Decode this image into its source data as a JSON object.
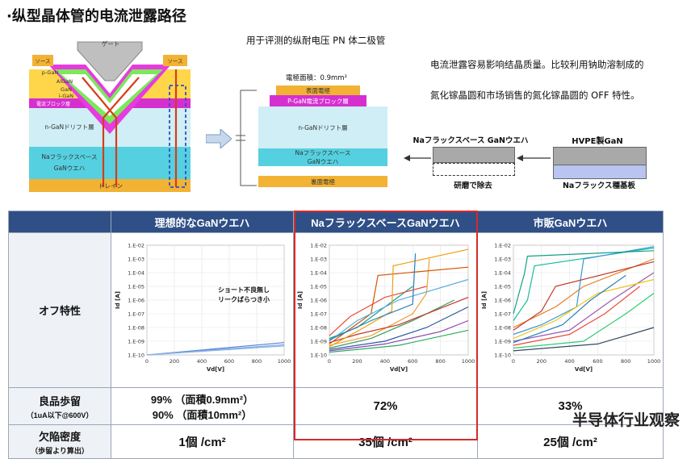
{
  "page": {
    "title": "·纵型晶体管的电流泄露路径",
    "caption_diode": "用于评测的纵耐电压 PN 体二极管",
    "caption_right_line1": "电流泄露容易影响结晶质量。比较利用钠助溶制成的",
    "caption_right_line2": "氮化镓晶圆和市场销售的氮化镓晶圆的 OFF 特性。"
  },
  "transistor": {
    "gate": "ゲート",
    "source_left": "ソース",
    "source_right": "ソース",
    "p_gan_left": "p-GaN",
    "algan": "AlGaN",
    "gan": "GaN",
    "i_gan": "i-GaN",
    "current_block": "電流ブロック層",
    "n_drift": "n-GaNドリフト層",
    "na_base_line1": "Naフラックスベース",
    "na_base_line2": "GaNウエハ",
    "drain": "ドレイン"
  },
  "diode": {
    "area": "電極面積：0.9mm²",
    "top_electrode": "表面電極",
    "p_block": "P-GaN電流ブロック層",
    "n_drift": "n-GaNドリフト層",
    "na_base_line1": "Naフラックスベース",
    "na_base_line2": "GaNウエハ",
    "back_electrode": "裏面電極"
  },
  "process": {
    "hvpe": "HVPE製GaN",
    "na_wafer": "Naフラックスベース GaNウエハ",
    "grind": "研磨で除去",
    "na_seed": "Naフラックス種基板"
  },
  "table": {
    "headers": [
      "",
      "理想的なGaNウエハ",
      "NaフラックスベースGaNウエハ",
      "市販GaNウエハ"
    ],
    "row_off": "オフ特性",
    "row_yield": "良品歩留",
    "row_yield_sub": "（1uA以下@600V）",
    "row_defect": "欠陥密度",
    "row_defect_sub": "（歩留より算出）",
    "yield_ideal_line1": "99% （面積0.9mm²）",
    "yield_ideal_line2": "90% （面積10mm²）",
    "yield_na": "72%",
    "yield_com": "33%",
    "defect_ideal": "1個 /cm²",
    "defect_na": "35個 /cm²",
    "defect_com": "25個 /cm²"
  },
  "watermark": "半导体行业观察",
  "chart_data": [
    {
      "type": "line",
      "title": "",
      "xlabel": "Vd[V]",
      "ylabel": "Id [A]",
      "xlim": [
        0,
        1000
      ],
      "log_y": true,
      "y_ticks": [
        "1.E-02",
        "1.E-03",
        "1.E-04",
        "1.E-05",
        "1.E-06",
        "1.E-07",
        "1.E-08",
        "1.E-09",
        "1.E-10"
      ],
      "x_ticks": [
        "0",
        "200",
        "400",
        "600",
        "800",
        "1000"
      ],
      "annotation_line1": "ショート不良無し",
      "annotation_line2": "リークばらつき小",
      "series": [
        {
          "color": "#5b7fd6",
          "values": [
            [
              0,
              -10
            ],
            [
              1000,
              -9.1
            ]
          ]
        },
        {
          "color": "#6fa8dc",
          "values": [
            [
              0,
              -10
            ],
            [
              1000,
              -9.25
            ]
          ]
        },
        {
          "color": "#8fb3e8",
          "values": [
            [
              0,
              -10
            ],
            [
              1000,
              -9.35
            ]
          ]
        }
      ]
    },
    {
      "type": "line",
      "title": "",
      "xlabel": "Vd[V]",
      "ylabel": "Id [A]",
      "xlim": [
        0,
        1000
      ],
      "log_y": true,
      "y_ticks": [
        "1.E-02",
        "1.E-03",
        "1.E-04",
        "1.E-05",
        "1.E-06",
        "1.E-07",
        "1.E-08",
        "1.E-09",
        "1.E-10"
      ],
      "x_ticks": [
        "0",
        "200",
        "400",
        "600",
        "800",
        "1000"
      ],
      "series": [
        {
          "color": "#f0a030",
          "values": [
            [
              0,
              -9.3
            ],
            [
              300,
              -8.6
            ],
            [
              600,
              -7
            ],
            [
              700,
              -5.5
            ],
            [
              720,
              -3
            ]
          ]
        },
        {
          "color": "#2c5aa0",
          "values": [
            [
              0,
              -9.6
            ],
            [
              400,
              -9
            ],
            [
              700,
              -8
            ],
            [
              1000,
              -6.5
            ]
          ]
        },
        {
          "color": "#3a9b5c",
          "values": [
            [
              0,
              -9.5
            ],
            [
              300,
              -8.8
            ],
            [
              600,
              -7.5
            ],
            [
              900,
              -6
            ]
          ]
        },
        {
          "color": "#c0392b",
          "values": [
            [
              0,
              -9.1
            ],
            [
              200,
              -8.5
            ],
            [
              500,
              -7.8
            ],
            [
              800,
              -6.6
            ],
            [
              1000,
              -5.8
            ]
          ]
        },
        {
          "color": "#8e44ad",
          "values": [
            [
              0,
              -9.7
            ],
            [
              400,
              -9.2
            ],
            [
              800,
              -8.3
            ],
            [
              1000,
              -7.5
            ]
          ]
        },
        {
          "color": "#16a085",
          "values": [
            [
              0,
              -8.8
            ],
            [
              200,
              -8
            ],
            [
              400,
              -6.5
            ],
            [
              600,
              -5
            ]
          ]
        },
        {
          "color": "#d35400",
          "values": [
            [
              0,
              -9.2
            ],
            [
              300,
              -7
            ],
            [
              350,
              -4.2
            ],
            [
              1000,
              -3.6
            ]
          ]
        },
        {
          "color": "#5dade2",
          "values": [
            [
              0,
              -9
            ],
            [
              200,
              -7.5
            ],
            [
              500,
              -6
            ],
            [
              1000,
              -4.5
            ]
          ]
        },
        {
          "color": "#e74c3c",
          "values": [
            [
              0,
              -8.6
            ],
            [
              150,
              -7.2
            ],
            [
              400,
              -5.8
            ],
            [
              700,
              -5
            ]
          ]
        },
        {
          "color": "#27ae60",
          "values": [
            [
              0,
              -9.8
            ],
            [
              500,
              -9.3
            ],
            [
              1000,
              -8.2
            ]
          ]
        },
        {
          "color": "#f39c12",
          "values": [
            [
              0,
              -9.4
            ],
            [
              250,
              -8
            ],
            [
              450,
              -6.8
            ],
            [
              460,
              -3.5
            ],
            [
              1000,
              -2.3
            ]
          ]
        },
        {
          "color": "#2980b9",
          "values": [
            [
              0,
              -8.9
            ],
            [
              300,
              -7.5
            ],
            [
              600,
              -6.3
            ],
            [
              620,
              -2.6
            ]
          ]
        }
      ]
    },
    {
      "type": "line",
      "title": "",
      "xlabel": "Vd[V]",
      "ylabel": "Id [A]",
      "xlim": [
        0,
        1000
      ],
      "log_y": true,
      "y_ticks": [
        "1.E-02",
        "1.E-03",
        "1.E-04",
        "1.E-05",
        "1.E-06",
        "1.E-07",
        "1.E-08",
        "1.E-09",
        "1.E-10"
      ],
      "x_ticks": [
        "0",
        "200",
        "400",
        "600",
        "800",
        "1000"
      ],
      "series": [
        {
          "color": "#1abc9c",
          "values": [
            [
              0,
              -7.5
            ],
            [
              100,
              -6
            ],
            [
              150,
              -3.5
            ],
            [
              1000,
              -2.2
            ]
          ]
        },
        {
          "color": "#e67e22",
          "values": [
            [
              0,
              -8
            ],
            [
              300,
              -6.5
            ],
            [
              500,
              -5
            ],
            [
              1000,
              -3
            ]
          ]
        },
        {
          "color": "#3498db",
          "values": [
            [
              0,
              -8.5
            ],
            [
              200,
              -7.8
            ],
            [
              450,
              -6.5
            ],
            [
              500,
              -3
            ],
            [
              1000,
              -2.1
            ]
          ]
        },
        {
          "color": "#9b59b6",
          "values": [
            [
              0,
              -9
            ],
            [
              400,
              -8.2
            ],
            [
              700,
              -6
            ],
            [
              1000,
              -4
            ]
          ]
        },
        {
          "color": "#2ecc71",
          "values": [
            [
              0,
              -9.5
            ],
            [
              500,
              -9
            ],
            [
              800,
              -7
            ],
            [
              1000,
              -5.5
            ]
          ]
        },
        {
          "color": "#c0392b",
          "values": [
            [
              0,
              -8.2
            ],
            [
              200,
              -6.8
            ],
            [
              300,
              -5
            ],
            [
              1000,
              -3.2
            ]
          ]
        },
        {
          "color": "#34495e",
          "values": [
            [
              0,
              -9.7
            ],
            [
              600,
              -9.2
            ],
            [
              1000,
              -8
            ]
          ]
        },
        {
          "color": "#16a085",
          "values": [
            [
              0,
              -7
            ],
            [
              80,
              -4
            ],
            [
              100,
              -2.8
            ],
            [
              1000,
              -2.4
            ]
          ]
        },
        {
          "color": "#f1c40f",
          "values": [
            [
              0,
              -8.8
            ],
            [
              300,
              -7.5
            ],
            [
              600,
              -5.5
            ],
            [
              1000,
              -4.5
            ]
          ]
        },
        {
          "color": "#e74c3c",
          "values": [
            [
              0,
              -9.3
            ],
            [
              400,
              -8.5
            ],
            [
              650,
              -7
            ],
            [
              900,
              -5
            ]
          ]
        },
        {
          "color": "#2980b9",
          "values": [
            [
              0,
              -9.1
            ],
            [
              350,
              -7.8
            ],
            [
              550,
              -6
            ],
            [
              800,
              -4.2
            ]
          ]
        }
      ]
    }
  ]
}
